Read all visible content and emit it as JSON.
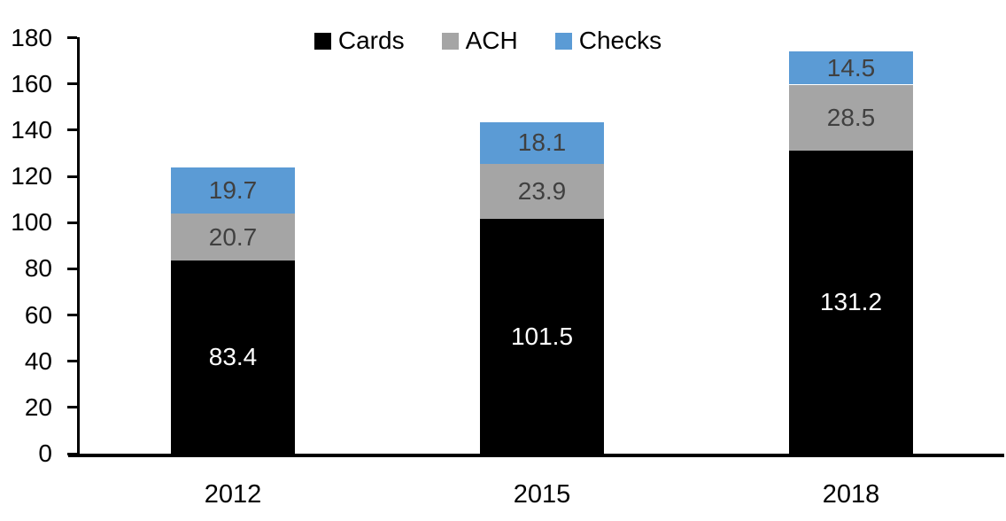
{
  "chart_data": {
    "type": "bar",
    "stacked": true,
    "title": "",
    "xlabel": "",
    "ylabel": "",
    "categories": [
      "2012",
      "2015",
      "2018"
    ],
    "series": [
      {
        "name": "Cards",
        "color": "#000000",
        "label_color": "#ffffff",
        "values": [
          83.4,
          101.5,
          131.2
        ]
      },
      {
        "name": "ACH",
        "color": "#a5a5a5",
        "label_color": "#404040",
        "values": [
          20.7,
          23.9,
          28.5
        ]
      },
      {
        "name": "Checks",
        "color": "#5b9bd5",
        "label_color": "#404040",
        "values": [
          19.7,
          18.1,
          14.5
        ]
      }
    ],
    "totals": [
      123.8,
      143.5,
      174.2
    ],
    "ylim": [
      0,
      180
    ],
    "ytick_step": 20,
    "yticks": [
      "0",
      "20",
      "40",
      "60",
      "80",
      "100",
      "120",
      "140",
      "160",
      "180"
    ],
    "grid": false,
    "legend_position": "top-center",
    "axis_color": "#000000",
    "background_color": "#ffffff"
  }
}
